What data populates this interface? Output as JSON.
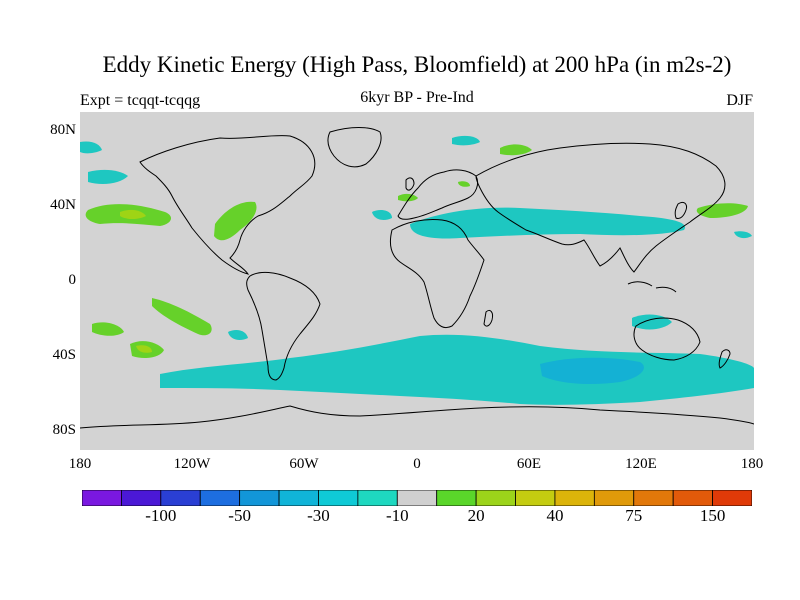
{
  "title": "Eddy Kinetic Energy (High Pass, Bloomfield) at 200 hPa (in m2s-2)",
  "experiment": "Expt = tcqqt-tcqqg",
  "subtitle": "6kyr BP - Pre-Ind",
  "season": "DJF",
  "colors": {
    "ocean": "#d3d3d3",
    "coast": "#000000",
    "negative_shade": "#1ec7c1",
    "negative_deeper": "#14b1d4",
    "positive_shade": "#66d12a",
    "positive_deeper": "#9fd415"
  },
  "y_axis": {
    "labels": [
      "80N",
      "40N",
      "0",
      "40S",
      "80S"
    ]
  },
  "x_axis": {
    "labels": [
      "180",
      "120W",
      "60W",
      "0",
      "60E",
      "120E",
      "180"
    ]
  },
  "colorbar": {
    "colors": [
      "#7a18e0",
      "#4b18d6",
      "#2a3fd4",
      "#1d6ee0",
      "#1296d8",
      "#10b4d8",
      "#0fcad6",
      "#1ed8c0",
      "#d0d0d0",
      "#5ad62a",
      "#9cd41a",
      "#c4cc10",
      "#dcb40a",
      "#e09a0a",
      "#e2780a",
      "#e25a0a",
      "#e03a08"
    ],
    "labels": [
      "-100",
      "-50",
      "-30",
      "-10",
      "20",
      "40",
      "75",
      "150"
    ]
  }
}
